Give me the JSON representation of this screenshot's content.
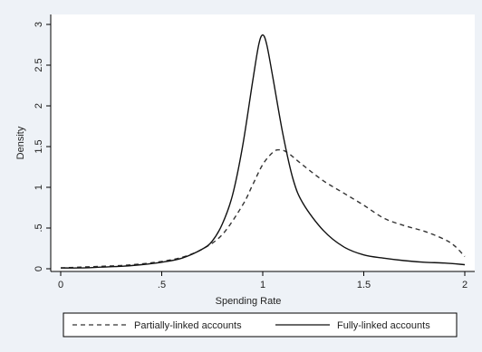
{
  "chart_data": {
    "type": "line",
    "title": "",
    "xlabel": "Spending Rate",
    "ylabel": "Density",
    "xlim": [
      0,
      2
    ],
    "ylim": [
      0,
      3
    ],
    "xticks": [
      0,
      0.5,
      1,
      1.5,
      2
    ],
    "xtick_labels": [
      "0",
      ".5",
      "1",
      "1.5",
      "2"
    ],
    "yticks": [
      0,
      0.5,
      1,
      1.5,
      2,
      2.5,
      3
    ],
    "ytick_labels": [
      "0",
      ".5",
      "1",
      "1.5",
      "2",
      "2.5",
      "3"
    ],
    "grid": false,
    "legend_position": "bottom",
    "series": [
      {
        "name": "Partially-linked accounts",
        "style": "dashed",
        "color": "#333333",
        "x": [
          0,
          0.1,
          0.2,
          0.3,
          0.4,
          0.5,
          0.6,
          0.7,
          0.8,
          0.9,
          0.95,
          1.0,
          1.05,
          1.08,
          1.12,
          1.2,
          1.3,
          1.4,
          1.5,
          1.6,
          1.7,
          1.8,
          1.9,
          1.95,
          2.0
        ],
        "y": [
          0.01,
          0.02,
          0.03,
          0.04,
          0.06,
          0.09,
          0.14,
          0.24,
          0.42,
          0.78,
          1.03,
          1.28,
          1.43,
          1.46,
          1.43,
          1.27,
          1.08,
          0.93,
          0.78,
          0.62,
          0.53,
          0.46,
          0.36,
          0.28,
          0.15
        ]
      },
      {
        "name": "Fully-linked accounts",
        "style": "solid",
        "color": "#111111",
        "x": [
          0,
          0.1,
          0.2,
          0.3,
          0.4,
          0.5,
          0.6,
          0.7,
          0.75,
          0.8,
          0.85,
          0.9,
          0.95,
          0.98,
          1.0,
          1.02,
          1.05,
          1.1,
          1.15,
          1.2,
          1.3,
          1.4,
          1.5,
          1.6,
          1.7,
          1.8,
          1.9,
          2.0
        ],
        "y": [
          0.01,
          0.01,
          0.02,
          0.03,
          0.05,
          0.08,
          0.13,
          0.24,
          0.34,
          0.55,
          0.9,
          1.5,
          2.3,
          2.75,
          2.87,
          2.75,
          2.35,
          1.65,
          1.1,
          0.8,
          0.47,
          0.27,
          0.17,
          0.13,
          0.1,
          0.08,
          0.07,
          0.05
        ]
      }
    ]
  }
}
